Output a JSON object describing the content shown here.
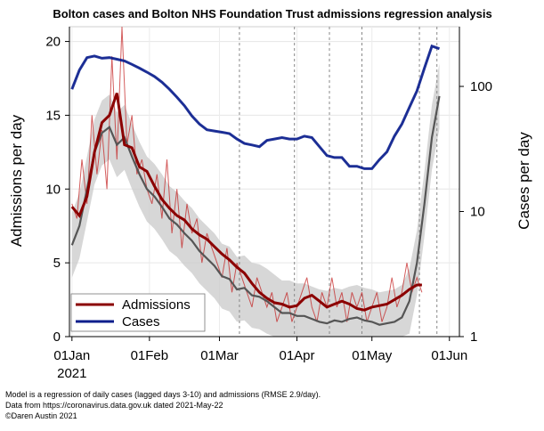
{
  "chart_data": {
    "type": "line",
    "title": "Bolton cases and Bolton NHS Foundation Trust admissions regression analysis",
    "ylabel_left": "Admissions per day",
    "ylabel_right": "Cases per day",
    "xlabel": "",
    "x_tick_labels": [
      {
        "day": 0,
        "label": "01Jan",
        "sub": "2021"
      },
      {
        "day": 31,
        "label": "01Feb",
        "sub": ""
      },
      {
        "day": 59,
        "label": "01Mar",
        "sub": ""
      },
      {
        "day": 90,
        "label": "01Apr",
        "sub": ""
      },
      {
        "day": 120,
        "label": "01May",
        "sub": ""
      },
      {
        "day": 151,
        "label": "01Jun",
        "sub": ""
      }
    ],
    "xlim": [
      -1,
      155
    ],
    "ylim_left": [
      0,
      21
    ],
    "yticks_left": [
      0,
      5,
      10,
      15,
      20
    ],
    "ylim_right_log": [
      1,
      300
    ],
    "yticks_right": [
      1,
      10,
      100
    ],
    "event_lines_days": [
      67,
      89,
      103,
      116,
      139,
      146
    ],
    "legend": [
      {
        "label": "Admissions",
        "color": "#8b0000"
      },
      {
        "label": "Cases",
        "color": "#0a1e8c"
      }
    ],
    "series": [
      {
        "name": "Admissions (daily)",
        "axis": "left",
        "x": [
          0,
          2,
          4,
          6,
          8,
          10,
          12,
          14,
          16,
          18,
          20,
          22,
          24,
          26,
          28,
          30,
          32,
          34,
          36,
          38,
          40,
          42,
          44,
          46,
          48,
          50,
          52,
          54,
          56,
          58,
          60,
          62,
          64,
          66,
          68,
          70,
          72,
          74,
          76,
          78,
          80,
          82,
          84,
          86,
          88,
          90,
          92,
          94,
          96,
          98,
          100,
          102,
          104,
          106,
          108,
          110,
          112,
          114,
          116,
          118,
          120,
          122,
          124,
          126,
          128,
          130,
          132,
          134,
          136,
          138,
          140
        ],
        "values": [
          9,
          8,
          12,
          9,
          15,
          11,
          14,
          10,
          19,
          12,
          21,
          13,
          15,
          11,
          12,
          10,
          9,
          11,
          8,
          12,
          7,
          10,
          6,
          9,
          7,
          8,
          5,
          7,
          6,
          5,
          4,
          6,
          3,
          5,
          4,
          3,
          2,
          4,
          3,
          2,
          3,
          1,
          2,
          3,
          1,
          2,
          3,
          4,
          2,
          1,
          3,
          2,
          4,
          2,
          3,
          1,
          3,
          2,
          3,
          1,
          2,
          3,
          1,
          2,
          4,
          2,
          3,
          5,
          3,
          4,
          3
        ]
      },
      {
        "name": "Admissions (smoothed)",
        "axis": "left",
        "x": [
          0,
          3,
          6,
          9,
          12,
          15,
          18,
          21,
          24,
          27,
          30,
          33,
          36,
          39,
          42,
          45,
          48,
          51,
          54,
          57,
          60,
          63,
          66,
          69,
          72,
          75,
          78,
          81,
          84,
          87,
          90,
          93,
          96,
          99,
          102,
          105,
          108,
          111,
          114,
          117,
          120,
          123,
          126,
          129,
          132,
          135,
          138,
          140
        ],
        "values": [
          8.8,
          8.2,
          9.5,
          12.5,
          14.5,
          15.0,
          16.5,
          13.0,
          12.8,
          11.5,
          11.2,
          10.2,
          9.3,
          8.7,
          8.2,
          7.9,
          7.3,
          6.9,
          6.6,
          6.1,
          5.6,
          5.2,
          4.7,
          4.3,
          3.6,
          3.0,
          2.6,
          2.3,
          2.2,
          2.0,
          2.1,
          2.6,
          2.8,
          2.4,
          2.0,
          2.2,
          2.4,
          2.2,
          1.9,
          1.8,
          2.0,
          2.1,
          2.2,
          2.5,
          2.8,
          3.2,
          3.5,
          3.5
        ]
      },
      {
        "name": "Model fit",
        "axis": "left",
        "x": [
          0,
          3,
          6,
          9,
          12,
          15,
          18,
          21,
          24,
          27,
          30,
          33,
          36,
          39,
          42,
          45,
          48,
          51,
          54,
          57,
          60,
          63,
          66,
          69,
          72,
          75,
          78,
          81,
          84,
          87,
          90,
          93,
          96,
          99,
          102,
          105,
          108,
          111,
          114,
          117,
          120,
          123,
          126,
          129,
          132,
          135,
          138,
          141,
          144,
          147
        ],
        "values": [
          6.2,
          7.5,
          10.0,
          12.5,
          13.8,
          14.2,
          13.0,
          13.5,
          12.2,
          11.0,
          10.0,
          9.5,
          8.8,
          8.0,
          7.6,
          7.0,
          6.5,
          5.8,
          5.3,
          4.8,
          4.1,
          3.9,
          3.2,
          3.3,
          2.8,
          2.7,
          2.4,
          2.0,
          1.6,
          1.6,
          1.4,
          1.4,
          1.2,
          1.0,
          0.9,
          1.1,
          1.0,
          1.2,
          1.3,
          1.1,
          1.0,
          0.8,
          0.9,
          1.0,
          1.3,
          2.4,
          5.0,
          9.0,
          13.5,
          16.3
        ]
      },
      {
        "name": "Cases",
        "axis": "right_log",
        "x": [
          0,
          3,
          6,
          9,
          12,
          15,
          18,
          21,
          24,
          27,
          30,
          33,
          36,
          39,
          42,
          45,
          48,
          51,
          54,
          57,
          60,
          63,
          66,
          69,
          72,
          75,
          78,
          81,
          84,
          87,
          90,
          93,
          96,
          99,
          102,
          105,
          108,
          111,
          114,
          117,
          120,
          123,
          126,
          129,
          132,
          135,
          138,
          141,
          144,
          147
        ],
        "values": [
          95,
          135,
          170,
          175,
          168,
          170,
          165,
          160,
          150,
          140,
          130,
          120,
          108,
          95,
          82,
          70,
          58,
          50,
          45,
          44,
          43,
          42,
          38,
          35,
          34,
          33,
          37,
          38,
          39,
          38,
          38,
          40,
          39,
          33,
          28,
          27,
          27,
          23,
          23,
          22,
          22,
          26,
          30,
          40,
          50,
          68,
          92,
          140,
          210,
          200
        ]
      }
    ]
  },
  "footnotes": {
    "line1": "Model is a regression of daily cases (lagged days 3-10) and admissions (RMSE 2.9/day).",
    "line2": "Data from https://coronavirus.data.gov.uk dated 2021-May-22",
    "line3": "©Daren Austin 2021"
  }
}
